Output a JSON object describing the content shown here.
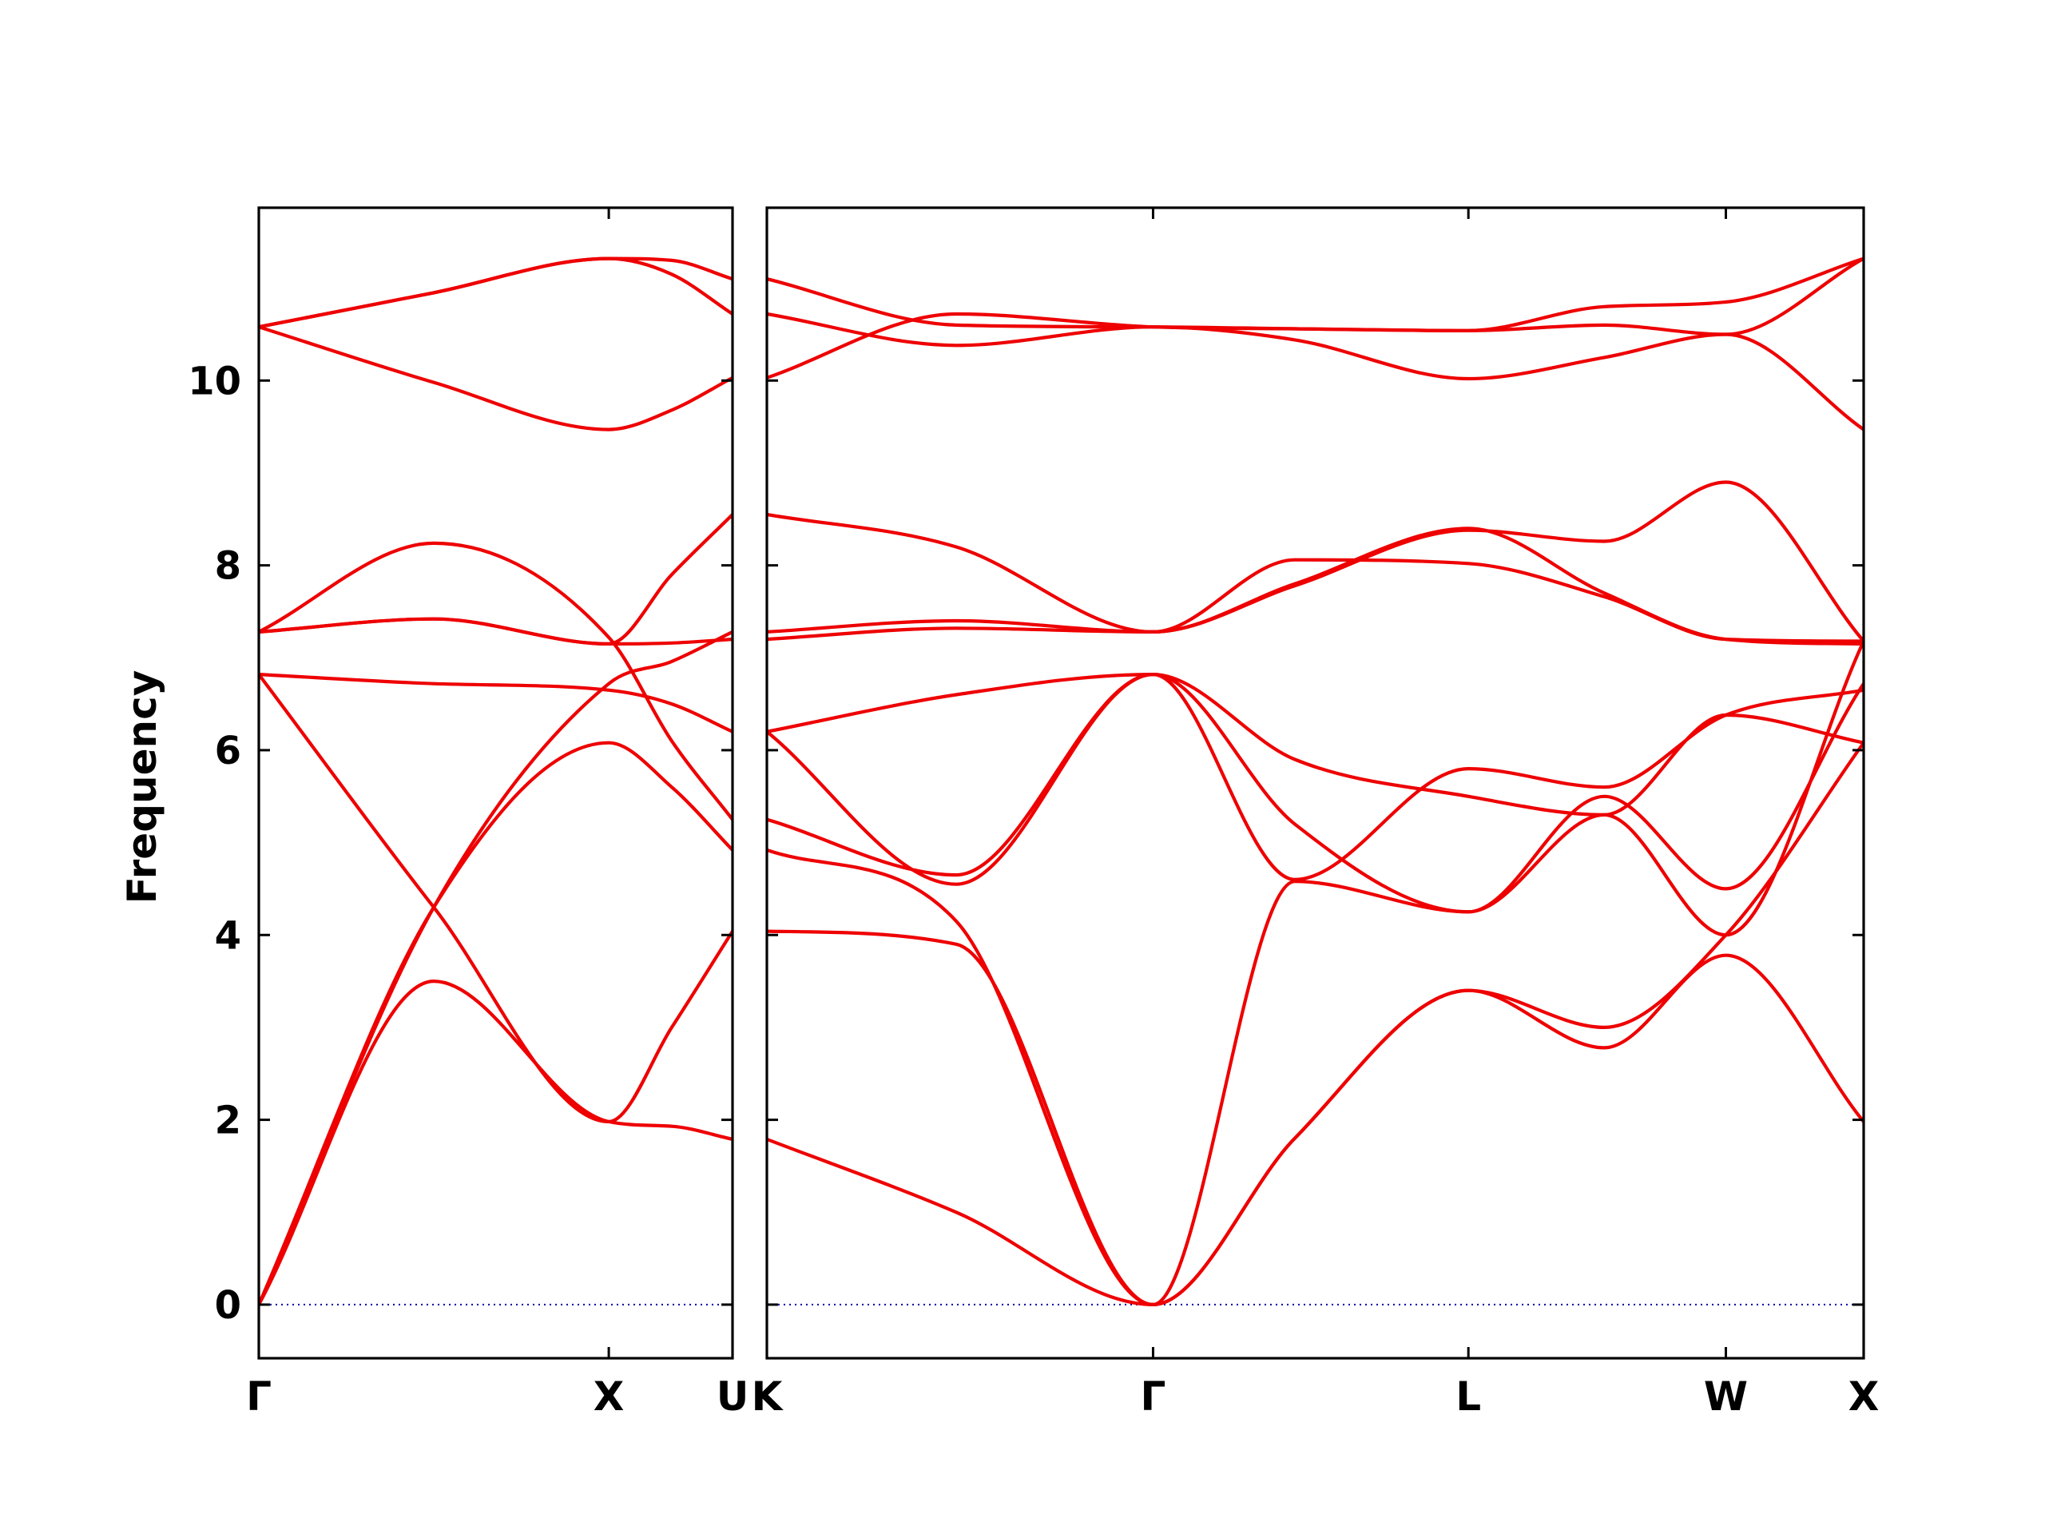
{
  "chart_data": {
    "type": "line",
    "ylabel": "Frequency",
    "ylim": [
      -0.58,
      11.87
    ],
    "yticks": [
      0,
      2,
      4,
      6,
      8,
      10
    ],
    "line_color": "#ee0000",
    "zero_line_color": "#0000aa",
    "panels": [
      {
        "xlim": [
          0,
          1.3536
        ],
        "ticks": [
          {
            "label": "Γ",
            "x": 0
          },
          {
            "label": "X",
            "x": 1.0
          },
          {
            "label": "U",
            "x": 1.3536
          }
        ],
        "series": [
          {
            "x": [
              0,
              0.5,
              1.0,
              1.18,
              1.3536
            ],
            "y": [
              0.0,
              3.5,
              1.98,
              1.93,
              1.79
            ]
          },
          {
            "x": [
              0,
              0.5,
              1.0,
              1.18,
              1.3536
            ],
            "y": [
              0.0,
              4.3,
              6.08,
              5.6,
              4.92
            ]
          },
          {
            "x": [
              0,
              0.5,
              1.0,
              1.18,
              1.3536
            ],
            "y": [
              6.82,
              4.3,
              1.98,
              3.0,
              4.04
            ]
          },
          {
            "x": [
              0,
              0.5,
              1.0,
              1.18,
              1.3536
            ],
            "y": [
              0.0,
              4.3,
              6.72,
              6.96,
              7.28
            ]
          },
          {
            "x": [
              0,
              0.5,
              1.0,
              1.18,
              1.3536
            ],
            "y": [
              6.82,
              6.72,
              6.65,
              6.5,
              6.2
            ]
          },
          {
            "x": [
              0,
              0.5,
              1.0,
              1.18,
              1.3536
            ],
            "y": [
              7.28,
              7.42,
              7.15,
              7.16,
              7.2
            ]
          },
          {
            "x": [
              0,
              0.5,
              1.0,
              1.18,
              1.3536
            ],
            "y": [
              7.28,
              8.24,
              7.22,
              6.1,
              5.25
            ]
          },
          {
            "x": [
              0,
              0.5,
              1.0,
              1.18,
              1.3536
            ],
            "y": [
              7.28,
              7.42,
              7.15,
              7.9,
              8.55
            ]
          },
          {
            "x": [
              0,
              0.5,
              1.0,
              1.18,
              1.3536
            ],
            "y": [
              10.58,
              9.98,
              9.47,
              9.68,
              10.03
            ]
          },
          {
            "x": [
              0,
              0.5,
              1.0,
              1.18,
              1.3536
            ],
            "y": [
              10.58,
              10.95,
              11.32,
              11.15,
              10.72
            ]
          },
          {
            "x": [
              0,
              0.5,
              1.0,
              1.18,
              1.3536
            ],
            "y": [
              10.58,
              10.95,
              11.32,
              11.3,
              11.1
            ]
          }
        ]
      },
      {
        "xlim": [
          0,
          3.0123
        ],
        "ticks": [
          {
            "label": "K",
            "x": 0
          },
          {
            "label": "Γ",
            "x": 1.0607
          },
          {
            "label": "L",
            "x": 1.9267
          },
          {
            "label": "W",
            "x": 2.6338
          },
          {
            "label": "X",
            "x": 3.0123
          }
        ],
        "series": [
          {
            "x": [
              0,
              0.52,
              1.0607,
              1.45,
              1.9267,
              2.3,
              2.6338,
              3.0123
            ],
            "y": [
              1.79,
              1.0,
              0.0,
              1.8,
              3.4,
              3.0,
              4.0,
              6.08
            ]
          },
          {
            "x": [
              0,
              0.52,
              1.0607,
              1.45,
              1.9267,
              2.3,
              2.6338,
              3.0123
            ],
            "y": [
              4.04,
              3.9,
              0.0,
              1.8,
              3.4,
              2.78,
              3.78,
              1.98
            ]
          },
          {
            "x": [
              0,
              0.52,
              1.0607,
              1.45,
              1.9267,
              2.3,
              2.6338,
              3.0123
            ],
            "y": [
              4.92,
              4.15,
              0.0,
              4.58,
              4.25,
              5.3,
              4.0,
              7.18
            ]
          },
          {
            "x": [
              0,
              0.52,
              1.0607,
              1.45,
              1.9267,
              2.3,
              2.6338,
              3.0123
            ],
            "y": [
              5.25,
              4.65,
              6.82,
              5.2,
              4.25,
              5.5,
              4.5,
              6.72
            ]
          },
          {
            "x": [
              0,
              0.52,
              1.0607,
              1.45,
              1.9267,
              2.3,
              2.6338,
              3.0123
            ],
            "y": [
              6.2,
              6.6,
              6.82,
              5.9,
              5.5,
              5.3,
              6.38,
              6.08
            ]
          },
          {
            "x": [
              0,
              0.52,
              1.0607,
              1.45,
              1.9267,
              2.3,
              2.6338,
              3.0123
            ],
            "y": [
              6.2,
              4.55,
              6.82,
              4.6,
              5.8,
              5.6,
              6.38,
              6.65
            ]
          },
          {
            "x": [
              0,
              0.52,
              1.0607,
              1.45,
              1.9267,
              2.3,
              2.6338,
              3.0123
            ],
            "y": [
              7.2,
              7.32,
              7.28,
              7.8,
              8.4,
              7.7,
              7.2,
              7.15
            ]
          },
          {
            "x": [
              0,
              0.52,
              1.0607,
              1.45,
              1.9267,
              2.3,
              2.6338,
              3.0123
            ],
            "y": [
              7.28,
              7.4,
              7.28,
              8.06,
              8.02,
              7.66,
              7.2,
              7.18
            ]
          },
          {
            "x": [
              0,
              0.52,
              1.0607,
              1.45,
              1.9267,
              2.3,
              2.6338,
              3.0123
            ],
            "y": [
              8.55,
              8.2,
              7.28,
              7.78,
              8.38,
              8.26,
              8.9,
              7.18
            ]
          },
          {
            "x": [
              0,
              0.52,
              1.0607,
              1.45,
              1.9267,
              2.3,
              2.6338,
              3.0123
            ],
            "y": [
              10.03,
              10.72,
              10.58,
              10.56,
              10.54,
              10.8,
              10.85,
              11.32
            ]
          },
          {
            "x": [
              0,
              0.52,
              1.0607,
              1.45,
              1.9267,
              2.3,
              2.6338,
              3.0123
            ],
            "y": [
              10.72,
              10.38,
              10.58,
              10.44,
              10.02,
              10.25,
              10.5,
              9.47
            ]
          },
          {
            "x": [
              0,
              0.52,
              1.0607,
              1.45,
              1.9267,
              2.3,
              2.6338,
              3.0123
            ],
            "y": [
              11.1,
              10.6,
              10.58,
              10.56,
              10.54,
              10.6,
              10.5,
              11.32
            ]
          }
        ]
      }
    ]
  }
}
